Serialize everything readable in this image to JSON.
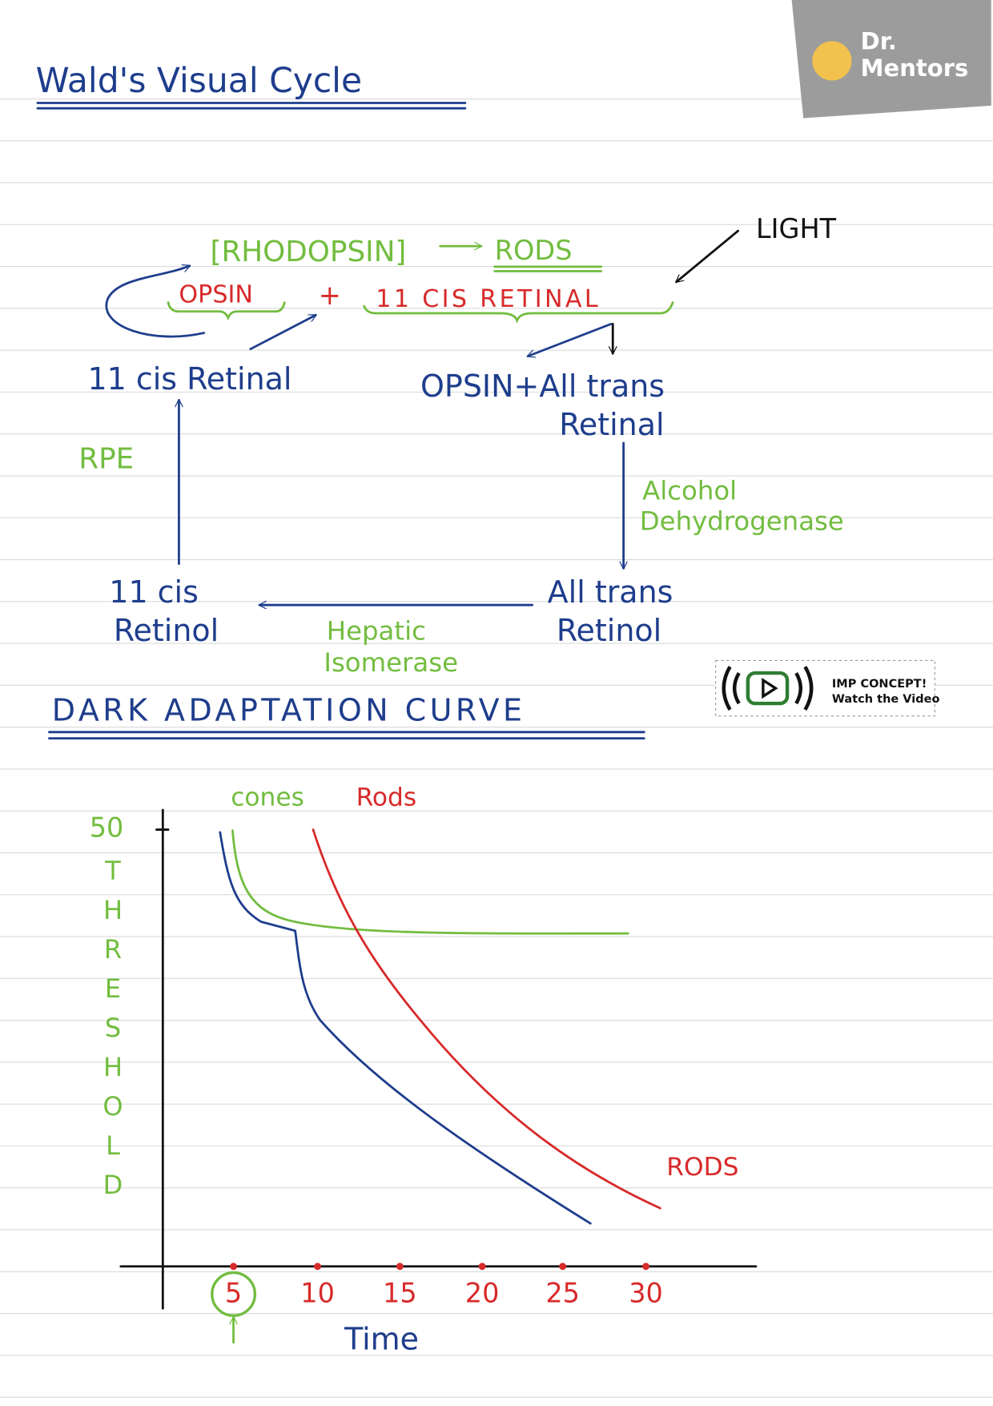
{
  "header": {
    "title": "Wald's Visual Cycle",
    "logo": [
      "Dr.",
      "Mentors"
    ]
  },
  "cycle": {
    "rhodopsin": "[RHODOPSIN]",
    "rods": "RODS",
    "opsin": "OPSIN",
    "plus": "+",
    "cis_retinal": "11 CIS RETINAL",
    "light": "LIGHT",
    "nodes": [
      {
        "lines": [
          "11 cis Retinal"
        ]
      },
      {
        "lines": [
          "OPSIN+All trans",
          "Retinal"
        ]
      },
      {
        "lines": [
          "All trans",
          "Retinol"
        ]
      },
      {
        "lines": [
          "11 cis",
          "Retinol"
        ]
      }
    ],
    "enzymes": {
      "rpe": "RPE",
      "alcohol_dehydrogenase": [
        "Alcohol",
        "Dehydrogenase"
      ],
      "hepatic_isomerase": [
        "Hepatic",
        "Isomerase"
      ]
    }
  },
  "badge": {
    "title": "IMP CONCEPT!",
    "subtitle": "Watch the Video"
  },
  "dark_adaptation": {
    "title": "DARK ADAPTATION CURVE",
    "legend": [
      "cones",
      "Rods"
    ],
    "y_label": "THRESHOLD",
    "y_tick": "50",
    "x_ticks": [
      "5",
      "10",
      "15",
      "20",
      "25",
      "30"
    ],
    "x_label": "Time",
    "curve_label": "RODS"
  }
}
